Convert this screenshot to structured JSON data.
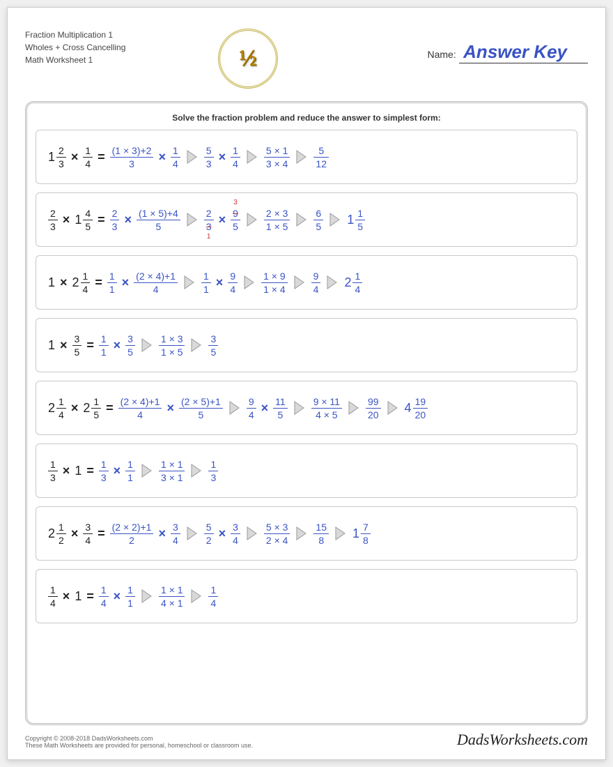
{
  "colors": {
    "problem_color": "#222222",
    "answer_color": "#3a53c4",
    "cancel_color": "#cc3333",
    "border_color": "#c9c9c9",
    "frame_color": "#b8b8b8",
    "page_bg": "#ffffff"
  },
  "typography": {
    "base_font": "Arial, Helvetica, sans-serif",
    "header_fontsize": 12,
    "instruction_fontsize": 12,
    "problem_fontsize": 16,
    "fraction_fontsize": 14,
    "answerkey_fontsize": 26
  },
  "header": {
    "line1": "Fraction Multiplication 1",
    "line2": "Wholes + Cross Cancelling",
    "line3": "Math Worksheet 1",
    "logo_text": "½",
    "name_label": "Name:",
    "answer_key": "Answer Key"
  },
  "instruction": "Solve the fraction problem and reduce the answer to simplest form:",
  "footer": {
    "copyright": "Copyright © 2008-2018 DadsWorksheets.com",
    "note": "These Math Worksheets are provided for personal, homeschool or classroom use.",
    "brand": "DadsWorksheets.com"
  },
  "arrow_fill": "#d9d9d9",
  "arrow_stroke": "#9a9a9a",
  "problems": [
    [
      {
        "t": "mixed",
        "color": "black",
        "whole": "1",
        "n": "2",
        "d": "3"
      },
      {
        "t": "op",
        "color": "black",
        "v": "×"
      },
      {
        "t": "frac",
        "color": "black",
        "n": "1",
        "d": "4"
      },
      {
        "t": "op",
        "color": "black",
        "v": "="
      },
      {
        "t": "frac",
        "color": "blue",
        "n": "(1 × 3)+2",
        "d": "3"
      },
      {
        "t": "op",
        "color": "blue",
        "v": "×"
      },
      {
        "t": "frac",
        "color": "blue",
        "n": "1",
        "d": "4"
      },
      {
        "t": "arrow"
      },
      {
        "t": "frac",
        "color": "blue",
        "n": "5",
        "d": "3"
      },
      {
        "t": "op",
        "color": "blue",
        "v": "×"
      },
      {
        "t": "frac",
        "color": "blue",
        "n": "1",
        "d": "4"
      },
      {
        "t": "arrow"
      },
      {
        "t": "frac",
        "color": "blue",
        "n": "5 × 1",
        "d": "3 × 4"
      },
      {
        "t": "arrow"
      },
      {
        "t": "frac",
        "color": "blue",
        "n": "5",
        "d": "12"
      }
    ],
    [
      {
        "t": "frac",
        "color": "black",
        "n": "2",
        "d": "3"
      },
      {
        "t": "op",
        "color": "black",
        "v": "×"
      },
      {
        "t": "mixed",
        "color": "black",
        "whole": "1",
        "n": "4",
        "d": "5"
      },
      {
        "t": "op",
        "color": "black",
        "v": "="
      },
      {
        "t": "frac",
        "color": "blue",
        "n": "2",
        "d": "3"
      },
      {
        "t": "op",
        "color": "blue",
        "v": "×"
      },
      {
        "t": "frac",
        "color": "blue",
        "n": "(1 × 5)+4",
        "d": "5"
      },
      {
        "t": "arrow"
      },
      {
        "t": "frac",
        "color": "blue",
        "n": "2",
        "d": "3",
        "strike_d": true,
        "cancel_bot": "1"
      },
      {
        "t": "op",
        "color": "blue",
        "v": "×"
      },
      {
        "t": "frac",
        "color": "blue",
        "n": "9",
        "d": "5",
        "strike_n": true,
        "cancel_top": "3"
      },
      {
        "t": "arrow"
      },
      {
        "t": "frac",
        "color": "blue",
        "n": "2 × 3",
        "d": "1 × 5"
      },
      {
        "t": "arrow"
      },
      {
        "t": "frac",
        "color": "blue",
        "n": "6",
        "d": "5"
      },
      {
        "t": "arrow"
      },
      {
        "t": "mixed",
        "color": "blue",
        "whole": "1",
        "n": "1",
        "d": "5"
      }
    ],
    [
      {
        "t": "txt",
        "color": "black",
        "v": "1"
      },
      {
        "t": "op",
        "color": "black",
        "v": "×"
      },
      {
        "t": "mixed",
        "color": "black",
        "whole": "2",
        "n": "1",
        "d": "4"
      },
      {
        "t": "op",
        "color": "black",
        "v": "="
      },
      {
        "t": "frac",
        "color": "blue",
        "n": "1",
        "d": "1"
      },
      {
        "t": "op",
        "color": "blue",
        "v": "×"
      },
      {
        "t": "frac",
        "color": "blue",
        "n": "(2 × 4)+1",
        "d": "4"
      },
      {
        "t": "arrow"
      },
      {
        "t": "frac",
        "color": "blue",
        "n": "1",
        "d": "1"
      },
      {
        "t": "op",
        "color": "blue",
        "v": "×"
      },
      {
        "t": "frac",
        "color": "blue",
        "n": "9",
        "d": "4"
      },
      {
        "t": "arrow"
      },
      {
        "t": "frac",
        "color": "blue",
        "n": "1 × 9",
        "d": "1 × 4"
      },
      {
        "t": "arrow"
      },
      {
        "t": "frac",
        "color": "blue",
        "n": "9",
        "d": "4"
      },
      {
        "t": "arrow"
      },
      {
        "t": "mixed",
        "color": "blue",
        "whole": "2",
        "n": "1",
        "d": "4"
      }
    ],
    [
      {
        "t": "txt",
        "color": "black",
        "v": "1"
      },
      {
        "t": "op",
        "color": "black",
        "v": "×"
      },
      {
        "t": "frac",
        "color": "black",
        "n": "3",
        "d": "5"
      },
      {
        "t": "op",
        "color": "black",
        "v": "="
      },
      {
        "t": "frac",
        "color": "blue",
        "n": "1",
        "d": "1"
      },
      {
        "t": "op",
        "color": "blue",
        "v": "×"
      },
      {
        "t": "frac",
        "color": "blue",
        "n": "3",
        "d": "5"
      },
      {
        "t": "arrow"
      },
      {
        "t": "frac",
        "color": "blue",
        "n": "1 × 3",
        "d": "1 × 5"
      },
      {
        "t": "arrow"
      },
      {
        "t": "frac",
        "color": "blue",
        "n": "3",
        "d": "5"
      }
    ],
    [
      {
        "t": "mixed",
        "color": "black",
        "whole": "2",
        "n": "1",
        "d": "4"
      },
      {
        "t": "op",
        "color": "black",
        "v": "×"
      },
      {
        "t": "mixed",
        "color": "black",
        "whole": "2",
        "n": "1",
        "d": "5"
      },
      {
        "t": "op",
        "color": "black",
        "v": "="
      },
      {
        "t": "frac",
        "color": "blue",
        "n": "(2 × 4)+1",
        "d": "4"
      },
      {
        "t": "op",
        "color": "blue",
        "v": "×"
      },
      {
        "t": "frac",
        "color": "blue",
        "n": "(2 × 5)+1",
        "d": "5"
      },
      {
        "t": "arrow"
      },
      {
        "t": "frac",
        "color": "blue",
        "n": "9",
        "d": "4"
      },
      {
        "t": "op",
        "color": "blue",
        "v": "×"
      },
      {
        "t": "frac",
        "color": "blue",
        "n": "11",
        "d": "5"
      },
      {
        "t": "arrow"
      },
      {
        "t": "frac",
        "color": "blue",
        "n": "9 × 11",
        "d": "4 × 5"
      },
      {
        "t": "arrow"
      },
      {
        "t": "frac",
        "color": "blue",
        "n": "99",
        "d": "20"
      },
      {
        "t": "arrow"
      },
      {
        "t": "mixed",
        "color": "blue",
        "whole": "4",
        "n": "19",
        "d": "20"
      }
    ],
    [
      {
        "t": "frac",
        "color": "black",
        "n": "1",
        "d": "3"
      },
      {
        "t": "op",
        "color": "black",
        "v": "×"
      },
      {
        "t": "txt",
        "color": "black",
        "v": "1"
      },
      {
        "t": "op",
        "color": "black",
        "v": "="
      },
      {
        "t": "frac",
        "color": "blue",
        "n": "1",
        "d": "3"
      },
      {
        "t": "op",
        "color": "blue",
        "v": "×"
      },
      {
        "t": "frac",
        "color": "blue",
        "n": "1",
        "d": "1"
      },
      {
        "t": "arrow"
      },
      {
        "t": "frac",
        "color": "blue",
        "n": "1 × 1",
        "d": "3 × 1"
      },
      {
        "t": "arrow"
      },
      {
        "t": "frac",
        "color": "blue",
        "n": "1",
        "d": "3"
      }
    ],
    [
      {
        "t": "mixed",
        "color": "black",
        "whole": "2",
        "n": "1",
        "d": "2"
      },
      {
        "t": "op",
        "color": "black",
        "v": "×"
      },
      {
        "t": "frac",
        "color": "black",
        "n": "3",
        "d": "4"
      },
      {
        "t": "op",
        "color": "black",
        "v": "="
      },
      {
        "t": "frac",
        "color": "blue",
        "n": "(2 × 2)+1",
        "d": "2"
      },
      {
        "t": "op",
        "color": "blue",
        "v": "×"
      },
      {
        "t": "frac",
        "color": "blue",
        "n": "3",
        "d": "4"
      },
      {
        "t": "arrow"
      },
      {
        "t": "frac",
        "color": "blue",
        "n": "5",
        "d": "2"
      },
      {
        "t": "op",
        "color": "blue",
        "v": "×"
      },
      {
        "t": "frac",
        "color": "blue",
        "n": "3",
        "d": "4"
      },
      {
        "t": "arrow"
      },
      {
        "t": "frac",
        "color": "blue",
        "n": "5 × 3",
        "d": "2 × 4"
      },
      {
        "t": "arrow"
      },
      {
        "t": "frac",
        "color": "blue",
        "n": "15",
        "d": "8"
      },
      {
        "t": "arrow"
      },
      {
        "t": "mixed",
        "color": "blue",
        "whole": "1",
        "n": "7",
        "d": "8"
      }
    ],
    [
      {
        "t": "frac",
        "color": "black",
        "n": "1",
        "d": "4"
      },
      {
        "t": "op",
        "color": "black",
        "v": "×"
      },
      {
        "t": "txt",
        "color": "black",
        "v": "1"
      },
      {
        "t": "op",
        "color": "black",
        "v": "="
      },
      {
        "t": "frac",
        "color": "blue",
        "n": "1",
        "d": "4"
      },
      {
        "t": "op",
        "color": "blue",
        "v": "×"
      },
      {
        "t": "frac",
        "color": "blue",
        "n": "1",
        "d": "1"
      },
      {
        "t": "arrow"
      },
      {
        "t": "frac",
        "color": "blue",
        "n": "1 × 1",
        "d": "4 × 1"
      },
      {
        "t": "arrow"
      },
      {
        "t": "frac",
        "color": "blue",
        "n": "1",
        "d": "4"
      }
    ]
  ]
}
